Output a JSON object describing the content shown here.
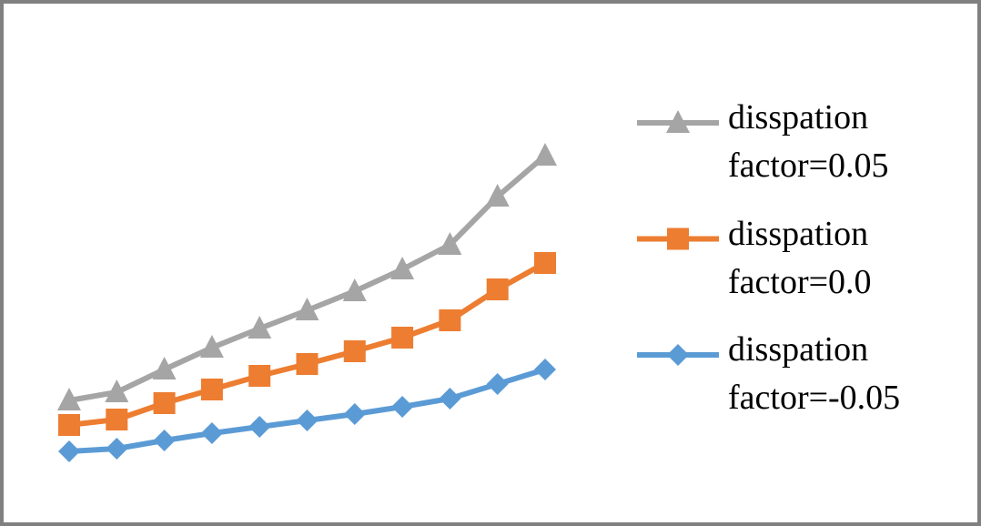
{
  "chart_data": {
    "type": "line",
    "categories": [
      null,
      null,
      null,
      null,
      null,
      null,
      null,
      null,
      null,
      null,
      null
    ],
    "ylim": [
      0,
      40
    ],
    "legend": "right",
    "series": [
      {
        "name": "disspation factor=0.05",
        "color": "#a5a5a5",
        "marker": "triangle",
        "values": [
          8.0,
          8.9,
          11.4,
          13.8,
          15.9,
          17.9,
          20.0,
          22.4,
          25.1,
          30.4,
          34.9
        ]
      },
      {
        "name": "disspation factor=0.0",
        "color": "#ed7d31",
        "marker": "square",
        "values": [
          5.3,
          5.9,
          7.7,
          9.2,
          10.7,
          12.0,
          13.4,
          14.9,
          16.8,
          20.2,
          23.1
        ]
      },
      {
        "name": "disspation factor=-0.05",
        "color": "#5b9bd5",
        "marker": "diamond",
        "values": [
          2.4,
          2.7,
          3.6,
          4.4,
          5.1,
          5.8,
          6.5,
          7.3,
          8.2,
          9.8,
          11.4
        ]
      }
    ]
  }
}
